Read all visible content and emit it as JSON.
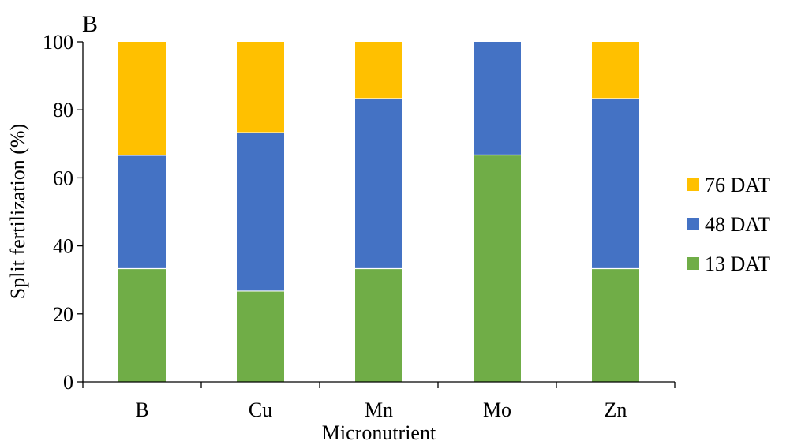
{
  "chart_data": {
    "type": "bar",
    "stacked": true,
    "panel_label": "B",
    "xlabel": "Micronutrient",
    "ylabel": "Split fertilization (%)",
    "ylim": [
      0,
      100
    ],
    "yticks": [
      0,
      20,
      40,
      60,
      80,
      100
    ],
    "categories": [
      "B",
      "Cu",
      "Mn",
      "Mo",
      "Zn"
    ],
    "series": [
      {
        "name": "13 DAT",
        "color": "#70ad47",
        "values": [
          33.3,
          26.7,
          33.3,
          66.7,
          33.3
        ]
      },
      {
        "name": "48 DAT",
        "color": "#4472c4",
        "values": [
          33.3,
          46.6,
          50.0,
          33.3,
          50.0
        ]
      },
      {
        "name": "76 DAT",
        "color": "#ffc000",
        "values": [
          33.4,
          26.7,
          16.7,
          0,
          16.7
        ]
      }
    ],
    "legend_order": [
      "76 DAT",
      "48 DAT",
      "13 DAT"
    ],
    "legend_position": "right",
    "grid": false
  }
}
